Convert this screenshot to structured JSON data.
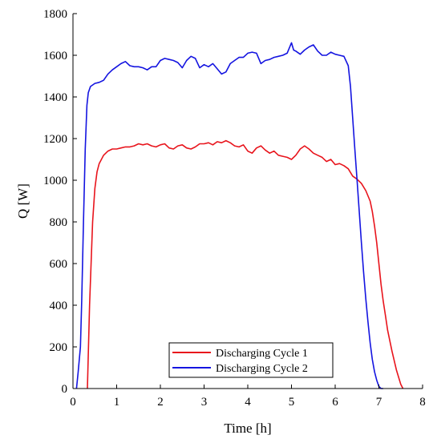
{
  "chart_data": {
    "type": "line",
    "title": "",
    "xlabel": "Time [h]",
    "ylabel": "Q [W]",
    "xlim": [
      0,
      8
    ],
    "ylim": [
      0,
      1800
    ],
    "xticks": [
      0,
      1,
      2,
      3,
      4,
      5,
      6,
      7,
      8
    ],
    "yticks": [
      0,
      200,
      400,
      600,
      800,
      1000,
      1200,
      1400,
      1600,
      1800
    ],
    "grid": false,
    "legend_position": "bottom-center",
    "series": [
      {
        "name": "Discharging Cycle 1",
        "color": "#e8141c",
        "x": [
          0.33,
          0.38,
          0.45,
          0.5,
          0.55,
          0.6,
          0.7,
          0.8,
          0.9,
          1.0,
          1.1,
          1.2,
          1.3,
          1.4,
          1.5,
          1.6,
          1.7,
          1.8,
          1.9,
          2.0,
          2.1,
          2.2,
          2.3,
          2.4,
          2.5,
          2.6,
          2.7,
          2.8,
          2.9,
          3.0,
          3.1,
          3.2,
          3.3,
          3.4,
          3.5,
          3.6,
          3.7,
          3.8,
          3.9,
          4.0,
          4.1,
          4.2,
          4.3,
          4.4,
          4.5,
          4.6,
          4.7,
          4.8,
          4.9,
          5.0,
          5.1,
          5.2,
          5.3,
          5.4,
          5.5,
          5.6,
          5.7,
          5.8,
          5.9,
          6.0,
          6.1,
          6.2,
          6.3,
          6.4,
          6.5,
          6.6,
          6.7,
          6.8,
          6.85,
          6.9,
          6.95,
          7.0,
          7.05,
          7.1,
          7.15,
          7.2,
          7.3,
          7.4,
          7.5,
          7.55
        ],
        "values": [
          0,
          400,
          800,
          960,
          1040,
          1080,
          1120,
          1140,
          1150,
          1150,
          1155,
          1160,
          1160,
          1165,
          1175,
          1170,
          1175,
          1165,
          1160,
          1170,
          1175,
          1155,
          1150,
          1165,
          1170,
          1155,
          1150,
          1160,
          1175,
          1175,
          1180,
          1170,
          1185,
          1180,
          1190,
          1180,
          1165,
          1160,
          1170,
          1140,
          1130,
          1155,
          1165,
          1145,
          1130,
          1140,
          1120,
          1115,
          1110,
          1100,
          1120,
          1150,
          1165,
          1150,
          1130,
          1120,
          1110,
          1090,
          1100,
          1075,
          1080,
          1070,
          1055,
          1020,
          1005,
          985,
          950,
          900,
          850,
          780,
          700,
          600,
          500,
          420,
          350,
          280,
          180,
          90,
          20,
          0
        ]
      },
      {
        "name": "Discharging Cycle 2",
        "color": "#1414e0",
        "x": [
          0.08,
          0.12,
          0.17,
          0.2,
          0.24,
          0.28,
          0.32,
          0.35,
          0.4,
          0.5,
          0.6,
          0.7,
          0.8,
          0.9,
          1.0,
          1.1,
          1.2,
          1.3,
          1.4,
          1.5,
          1.6,
          1.7,
          1.8,
          1.9,
          2.0,
          2.1,
          2.2,
          2.3,
          2.4,
          2.5,
          2.6,
          2.7,
          2.8,
          2.9,
          3.0,
          3.1,
          3.2,
          3.3,
          3.4,
          3.5,
          3.6,
          3.7,
          3.8,
          3.9,
          4.0,
          4.1,
          4.2,
          4.3,
          4.4,
          4.5,
          4.6,
          4.7,
          4.8,
          4.9,
          5.0,
          5.05,
          5.1,
          5.2,
          5.3,
          5.4,
          5.5,
          5.6,
          5.7,
          5.8,
          5.9,
          6.0,
          6.1,
          6.2,
          6.3,
          6.35,
          6.4,
          6.45,
          6.5,
          6.55,
          6.6,
          6.65,
          6.7,
          6.75,
          6.8,
          6.85,
          6.9,
          6.95,
          7.0,
          7.05,
          7.1
        ],
        "values": [
          0,
          80,
          200,
          420,
          800,
          1150,
          1360,
          1420,
          1450,
          1465,
          1470,
          1480,
          1510,
          1530,
          1545,
          1560,
          1570,
          1550,
          1545,
          1545,
          1540,
          1530,
          1545,
          1545,
          1575,
          1585,
          1580,
          1575,
          1565,
          1540,
          1575,
          1595,
          1585,
          1540,
          1555,
          1545,
          1560,
          1535,
          1510,
          1520,
          1560,
          1575,
          1590,
          1590,
          1610,
          1615,
          1610,
          1560,
          1575,
          1580,
          1590,
          1595,
          1600,
          1610,
          1660,
          1625,
          1620,
          1605,
          1625,
          1640,
          1650,
          1620,
          1600,
          1600,
          1615,
          1605,
          1600,
          1595,
          1550,
          1450,
          1300,
          1150,
          1000,
          850,
          700,
          560,
          430,
          320,
          220,
          140,
          80,
          40,
          10,
          0,
          0
        ]
      }
    ]
  }
}
